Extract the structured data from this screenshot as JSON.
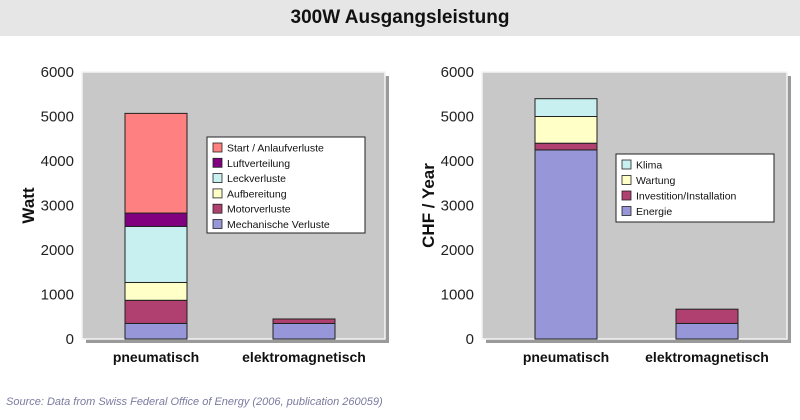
{
  "title": "300W Ausgangsleistung",
  "source": "Source: Data from Swiss Federal Office of Energy (2006, publication 260059)",
  "chart_data": [
    {
      "type": "bar",
      "stacked": true,
      "ylabel": "Watt",
      "categories": [
        "pneumatisch",
        "elektromagnetisch"
      ],
      "ylim": [
        0,
        6000
      ],
      "yticks": [
        0,
        1000,
        2000,
        3000,
        4000,
        5000,
        6000
      ],
      "grid": false,
      "legend_position": "right",
      "series": [
        {
          "name": "Mechanische Verluste",
          "color": "#9696d8",
          "values": [
            350,
            350
          ]
        },
        {
          "name": "Motorverluste",
          "color": "#b04070",
          "values": [
            520,
            100
          ]
        },
        {
          "name": "Aufbereitung",
          "color": "#ffffc8",
          "values": [
            400,
            0
          ]
        },
        {
          "name": "Leckverluste",
          "color": "#c8f0f0",
          "values": [
            1260,
            0
          ]
        },
        {
          "name": "Luftverteilung",
          "color": "#800080",
          "values": [
            300,
            0
          ]
        },
        {
          "name": "Start / Anlaufverluste",
          "color": "#ff8080",
          "values": [
            2240,
            0
          ]
        }
      ]
    },
    {
      "type": "bar",
      "stacked": true,
      "ylabel": "CHF / Year",
      "categories": [
        "pneumatisch",
        "elektromagnetisch"
      ],
      "ylim": [
        0,
        6000
      ],
      "yticks": [
        0,
        1000,
        2000,
        3000,
        4000,
        5000,
        6000
      ],
      "grid": false,
      "legend_position": "right",
      "series": [
        {
          "name": "Energie",
          "color": "#9696d8",
          "values": [
            4250,
            350
          ]
        },
        {
          "name": "Investition/Installation",
          "color": "#b04070",
          "values": [
            150,
            320
          ]
        },
        {
          "name": "Wartung",
          "color": "#ffffc8",
          "values": [
            600,
            0
          ]
        },
        {
          "name": "Klima",
          "color": "#c8f0f0",
          "values": [
            400,
            0
          ]
        }
      ]
    }
  ]
}
